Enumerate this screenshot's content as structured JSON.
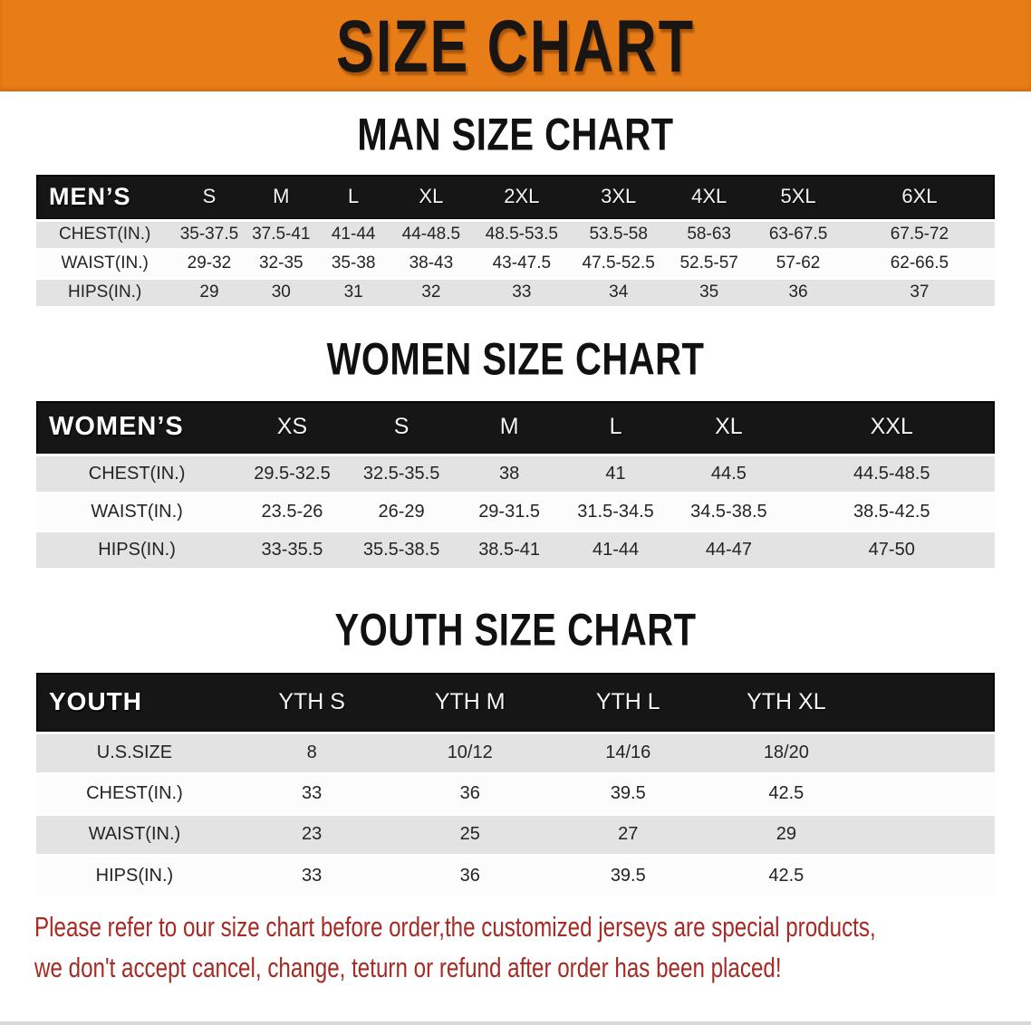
{
  "banner": {
    "title": "SIZE CHART"
  },
  "colors": {
    "banner_bg": "#E87D18",
    "table_header_bg": "#161616",
    "row_gray": "#E3E3E3",
    "row_white": "#FCFCFC",
    "disclaimer_red": "#A52B24"
  },
  "sections": [
    {
      "title": "MAN SIZE CHART",
      "group_label": "MEN’S",
      "columns": [
        "S",
        "M",
        "L",
        "XL",
        "2XL",
        "3XL",
        "4XL",
        "5XL",
        "6XL"
      ],
      "rows": [
        {
          "label": "CHEST(IN.)",
          "values": [
            "35-37.5",
            "37.5-41",
            "41-44",
            "44-48.5",
            "48.5-53.5",
            "53.5-58",
            "58-63",
            "63-67.5",
            "67.5-72"
          ]
        },
        {
          "label": "WAIST(IN.)",
          "values": [
            "29-32",
            "32-35",
            "35-38",
            "38-43",
            "43-47.5",
            "47.5-52.5",
            "52.5-57",
            "57-62",
            "62-66.5"
          ]
        },
        {
          "label": "HIPS(IN.)",
          "values": [
            "29",
            "30",
            "31",
            "32",
            "33",
            "34",
            "35",
            "36",
            "37"
          ]
        }
      ]
    },
    {
      "title": "WOMEN SIZE CHART",
      "group_label": "WOMEN’S",
      "columns": [
        "XS",
        "S",
        "M",
        "L",
        "XL",
        "XXL"
      ],
      "rows": [
        {
          "label": "CHEST(IN.)",
          "values": [
            "29.5-32.5",
            "32.5-35.5",
            "38",
            "41",
            "44.5",
            "44.5-48.5"
          ]
        },
        {
          "label": "WAIST(IN.)",
          "values": [
            "23.5-26",
            "26-29",
            "29-31.5",
            "31.5-34.5",
            "34.5-38.5",
            "38.5-42.5"
          ]
        },
        {
          "label": "HIPS(IN.)",
          "values": [
            "33-35.5",
            "35.5-38.5",
            "38.5-41",
            "41-44",
            "44-47",
            "47-50"
          ]
        }
      ]
    },
    {
      "title": "YOUTH SIZE CHART",
      "group_label": "YOUTH",
      "columns": [
        "YTH S",
        "YTH M",
        "YTH L",
        "YTH XL"
      ],
      "rows": [
        {
          "label": "U.S.SIZE",
          "values": [
            "8",
            "10/12",
            "14/16",
            "18/20"
          ]
        },
        {
          "label": "CHEST(IN.)",
          "values": [
            "33",
            "36",
            "39.5",
            "42.5"
          ]
        },
        {
          "label": "WAIST(IN.)",
          "values": [
            "23",
            "25",
            "27",
            "29"
          ]
        },
        {
          "label": "HIPS(IN.)",
          "values": [
            "33",
            "36",
            "39.5",
            "42.5"
          ]
        }
      ]
    }
  ],
  "disclaimer": {
    "line1": "Please refer to our size chart before order,the customized jerseys are special products,",
    "line2": "we don't accept cancel, change, teturn or refund after order has been placed!"
  }
}
